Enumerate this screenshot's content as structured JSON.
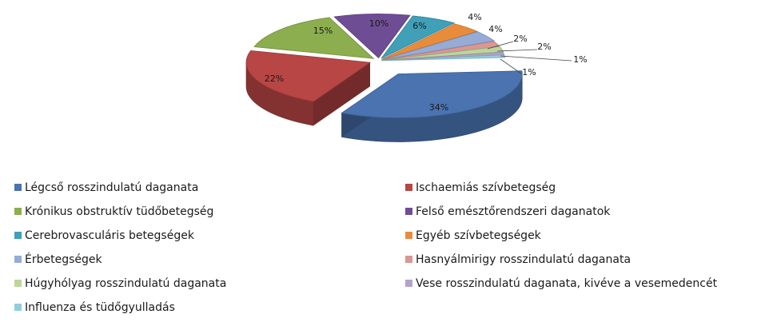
{
  "chart_data": {
    "type": "pie",
    "categories": [
      "Légcső rosszindulatú daganata",
      "Ischaemiás szívbetegség",
      "Krónikus obstruktív tüdőbetegség",
      "Felső emésztőrendszeri daganatok",
      "Cerebrovasculáris betegségek",
      "Egyéb szívbetegségek",
      "Érbetegségek",
      "Hasnyálmirigy rosszindulatú daganata",
      "Húgyhólyag rosszindulatú daganata",
      "Vese rosszindulatú daganata, kivéve a vesemedencét",
      "Influenza és tüdőgyulladás"
    ],
    "values": [
      34,
      22,
      15,
      10,
      6,
      4,
      4,
      2,
      2,
      1,
      1
    ],
    "labels": [
      "34%",
      "22%",
      "15%",
      "10%",
      "6%",
      "4%",
      "4%",
      "2%",
      "2%",
      "1%",
      "1%"
    ],
    "colors": [
      "#4a73b0",
      "#b84644",
      "#8cae4e",
      "#6f4d94",
      "#3fa0b8",
      "#e98c3a",
      "#96abd6",
      "#d99795",
      "#bcd69a",
      "#b2a3c9",
      "#93cddd"
    ],
    "legend_position": "bottom",
    "title": ""
  }
}
